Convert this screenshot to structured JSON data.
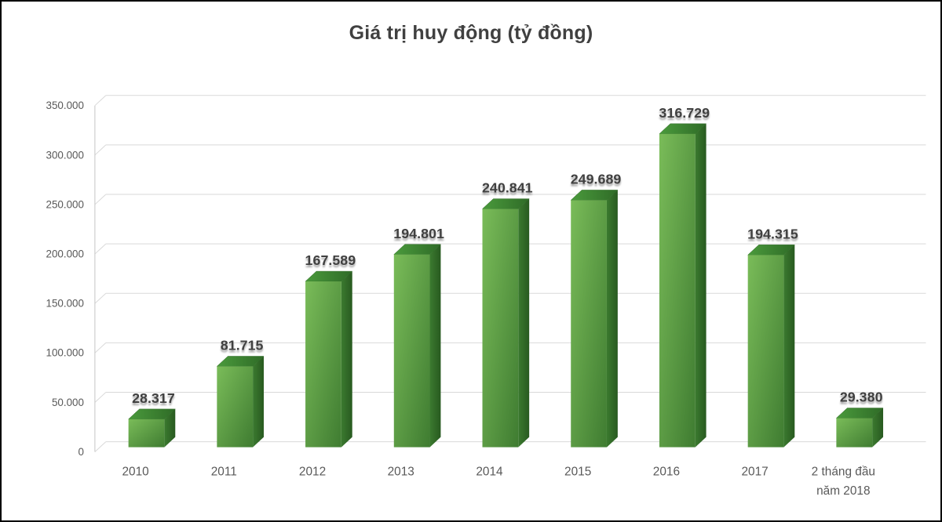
{
  "chart_data": {
    "type": "bar",
    "style": "3d-column",
    "title": "Giá trị huy động (tỷ đồng)",
    "categories": [
      "2010",
      "2011",
      "2012",
      "2013",
      "2014",
      "2015",
      "2016",
      "2017",
      "2 tháng đầu năm 2018"
    ],
    "values": [
      28317,
      81715,
      167589,
      194801,
      240841,
      249689,
      316729,
      194315,
      29380
    ],
    "value_labels": [
      "28.317",
      "81.715",
      "167.589",
      "194.801",
      "240.841",
      "249.689",
      "316.729",
      "194.315",
      "29.380"
    ],
    "y_ticks": [
      {
        "value": 0,
        "label": "0"
      },
      {
        "value": 50000,
        "label": "50.000"
      },
      {
        "value": 100000,
        "label": "100.000"
      },
      {
        "value": 150000,
        "label": "150.000"
      },
      {
        "value": 200000,
        "label": "200.000"
      },
      {
        "value": 250000,
        "label": "250.000"
      },
      {
        "value": 300000,
        "label": "300.000"
      },
      {
        "value": 350000,
        "label": "350.000"
      }
    ],
    "ylim": [
      0,
      350000
    ],
    "xlabel": "",
    "ylabel": "",
    "legend": "none",
    "grid": true,
    "colors": {
      "bar_front_light": "#7abc59",
      "bar_front_dark": "#3f7c31",
      "bar_top_light": "#4a9a3c",
      "bar_top_dark": "#2f6b27",
      "bar_side_light": "#3b7a2f",
      "bar_side_dark": "#285a20",
      "gridline": "#d9d9d9",
      "axis_line": "#c6c6c6",
      "tick_text": "#595959",
      "data_label_text": "#3f3f3f",
      "title_text": "#404040",
      "background": "#ffffff",
      "border": "#000000"
    }
  }
}
